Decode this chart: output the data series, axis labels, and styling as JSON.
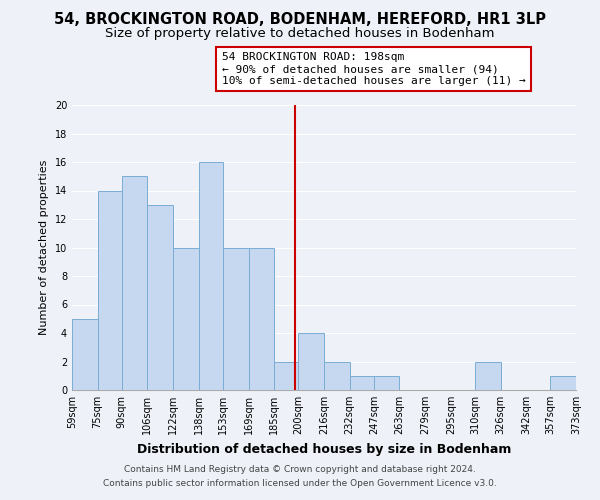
{
  "title": "54, BROCKINGTON ROAD, BODENHAM, HEREFORD, HR1 3LP",
  "subtitle": "Size of property relative to detached houses in Bodenham",
  "xlabel": "Distribution of detached houses by size in Bodenham",
  "ylabel": "Number of detached properties",
  "bar_edges": [
    59,
    75,
    90,
    106,
    122,
    138,
    153,
    169,
    185,
    200,
    216,
    232,
    247,
    263,
    279,
    295,
    310,
    326,
    342,
    357,
    373
  ],
  "bar_heights": [
    5,
    14,
    15,
    13,
    10,
    16,
    10,
    10,
    2,
    4,
    2,
    1,
    1,
    0,
    0,
    0,
    2,
    0,
    0,
    1
  ],
  "tick_labels": [
    "59sqm",
    "75sqm",
    "90sqm",
    "106sqm",
    "122sqm",
    "138sqm",
    "153sqm",
    "169sqm",
    "185sqm",
    "200sqm",
    "216sqm",
    "232sqm",
    "247sqm",
    "263sqm",
    "279sqm",
    "295sqm",
    "310sqm",
    "326sqm",
    "342sqm",
    "357sqm",
    "373sqm"
  ],
  "bar_color": "#c5d8f0",
  "bar_edge_color": "#7aadd4",
  "vline_x": 198,
  "vline_color": "#cc0000",
  "annotation_title": "54 BROCKINGTON ROAD: 198sqm",
  "annotation_line1": "← 90% of detached houses are smaller (94)",
  "annotation_line2": "10% of semi-detached houses are larger (11) →",
  "ylim": [
    0,
    20
  ],
  "yticks": [
    0,
    2,
    4,
    6,
    8,
    10,
    12,
    14,
    16,
    18,
    20
  ],
  "footnote1": "Contains HM Land Registry data © Crown copyright and database right 2024.",
  "footnote2": "Contains public sector information licensed under the Open Government Licence v3.0.",
  "background_color": "#eef2f8",
  "grid_color": "#ffffff",
  "title_fontsize": 10.5,
  "subtitle_fontsize": 9.5,
  "xlabel_fontsize": 9,
  "ylabel_fontsize": 8,
  "tick_fontsize": 7,
  "annotation_fontsize": 8,
  "footnote_fontsize": 6.5
}
